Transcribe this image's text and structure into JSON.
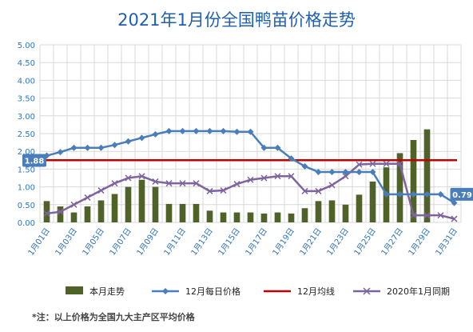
{
  "footnote": "*注：以上价格为全国九大主产区平均价格",
  "colors": {
    "bars": "#4f6228",
    "daily_line": "#4a7ebb",
    "avg_line": "#c00000",
    "prev_year": "#7e649e",
    "title": "#1f5fb0",
    "callout_bg": "#4a7ebb"
  },
  "chart_data": {
    "type": "bar",
    "title": "2021年1月份全国鸭苗价格走势",
    "xlabel": "",
    "ylabel": "",
    "ylim": [
      0,
      5
    ],
    "y_ticks": [
      "0.00",
      "0.50",
      "1.00",
      "1.50",
      "2.00",
      "2.50",
      "3.00",
      "3.50",
      "4.00",
      "4.50",
      "5.00"
    ],
    "grid": true,
    "legend_position": "bottom",
    "categories": [
      "1月01日",
      "1月02日",
      "1月03日",
      "1月04日",
      "1月05日",
      "1月06日",
      "1月07日",
      "1月08日",
      "1月09日",
      "1月10日",
      "1月11日",
      "1月12日",
      "1月13日",
      "1月14日",
      "1月15日",
      "1月16日",
      "1月17日",
      "1月18日",
      "1月19日",
      "1月20日",
      "1月21日",
      "1月22日",
      "1月23日",
      "1月24日",
      "1月25日",
      "1月26日",
      "1月27日",
      "1月28日",
      "1月29日",
      "1月30日",
      "1月31日"
    ],
    "x_tick_labels": [
      "1月01日",
      "1月03日",
      "1月05日",
      "1月07日",
      "1月09日",
      "1月11日",
      "1月13日",
      "1月15日",
      "1月17日",
      "1月19日",
      "1月21日",
      "1月23日",
      "1月25日",
      "1月27日",
      "1月29日",
      "1月31日"
    ],
    "series": [
      {
        "name": "本月走势",
        "type": "bar",
        "values": [
          0.6,
          0.45,
          0.28,
          0.45,
          0.62,
          0.8,
          1.0,
          1.2,
          1.0,
          0.52,
          0.52,
          0.52,
          0.33,
          0.28,
          0.28,
          0.28,
          0.25,
          0.28,
          0.25,
          0.4,
          0.6,
          0.62,
          0.5,
          0.78,
          1.15,
          1.55,
          1.95,
          2.32,
          2.62,
          null,
          null
        ]
      },
      {
        "name": "12月每日价格",
        "type": "line",
        "values": [
          1.88,
          1.98,
          2.1,
          2.1,
          2.1,
          2.18,
          2.28,
          2.38,
          2.48,
          2.57,
          2.57,
          2.57,
          2.57,
          2.57,
          2.55,
          2.55,
          2.1,
          2.1,
          1.8,
          1.58,
          1.42,
          1.42,
          1.42,
          1.42,
          1.42,
          0.79,
          0.79,
          0.79,
          0.79,
          0.79,
          0.55
        ]
      },
      {
        "name": "12月均线",
        "type": "line",
        "values": [
          1.75,
          1.75,
          1.75,
          1.75,
          1.75,
          1.75,
          1.75,
          1.75,
          1.75,
          1.75,
          1.75,
          1.75,
          1.75,
          1.75,
          1.75,
          1.75,
          1.75,
          1.75,
          1.75,
          1.75,
          1.75,
          1.75,
          1.75,
          1.75,
          1.75,
          1.75,
          1.75,
          1.75,
          1.75,
          1.75,
          1.75
        ]
      },
      {
        "name": "2020年1月同期",
        "type": "line",
        "values": [
          0.25,
          0.3,
          0.5,
          0.7,
          0.9,
          1.1,
          1.25,
          1.3,
          1.15,
          1.1,
          1.1,
          1.1,
          0.88,
          0.9,
          1.08,
          1.2,
          1.25,
          1.3,
          1.3,
          0.88,
          0.88,
          1.05,
          1.3,
          1.63,
          1.65,
          1.65,
          1.65,
          0.2,
          0.2,
          0.2,
          0.1
        ]
      }
    ],
    "annotations": [
      {
        "text": "1.88",
        "series": "12月每日价格",
        "index": 0
      },
      {
        "text": "0.79",
        "series": "12月每日价格",
        "index": 29
      }
    ]
  }
}
